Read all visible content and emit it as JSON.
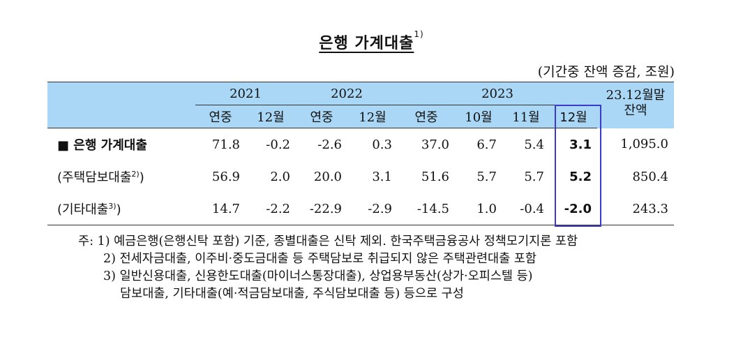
{
  "title": {
    "main": "은행 가계대출",
    "sup": "1)"
  },
  "unit": "(기간중 잔액 증감, 조원)",
  "header": {
    "years": [
      "2021",
      "2022",
      "2023"
    ],
    "last_col": "23.12월말",
    "last_col_sub": "잔액",
    "sub": [
      "연중",
      "12월",
      "연중",
      "12월",
      "연중",
      "10월",
      "11월",
      "12월"
    ]
  },
  "rows": [
    {
      "label": "■ 은행 가계대출",
      "sup": "",
      "values": [
        "71.8",
        "-0.2",
        "-2.6",
        "0.3",
        "37.0",
        "6.7",
        "5.4",
        "3.1",
        "1,095.0"
      ]
    },
    {
      "label": "(주택담보대출",
      "sup": "2)",
      "close": ")",
      "values": [
        "56.9",
        "2.0",
        "20.0",
        "3.1",
        "51.6",
        "5.7",
        "5.7",
        "5.2",
        "850.4"
      ]
    },
    {
      "label": "(기타대출",
      "sup": "3)",
      "close": ")",
      "values": [
        "14.7",
        "-2.2",
        "-22.9",
        "-2.9",
        "-14.5",
        "1.0",
        "-0.4",
        "-2.0",
        "243.3"
      ]
    }
  ],
  "notes": [
    "주: 1) 예금은행(은행신탁 포함) 기준, 종별대출은 신탁 제외. 한국주택금융공사 정책모기지론 포함",
    "2) 전세자금대출, 이주비·중도금대출 등 주택담보로 취급되지 않은 주택관련대출 포함",
    "3) 일반신용대출, 신용한도대출(마이너스통장대출), 상업용부동산(상가·오피스텔 등)",
    "담보대출, 기타대출(예·적금담보대출, 주식담보대출 등) 등으로 구성"
  ]
}
